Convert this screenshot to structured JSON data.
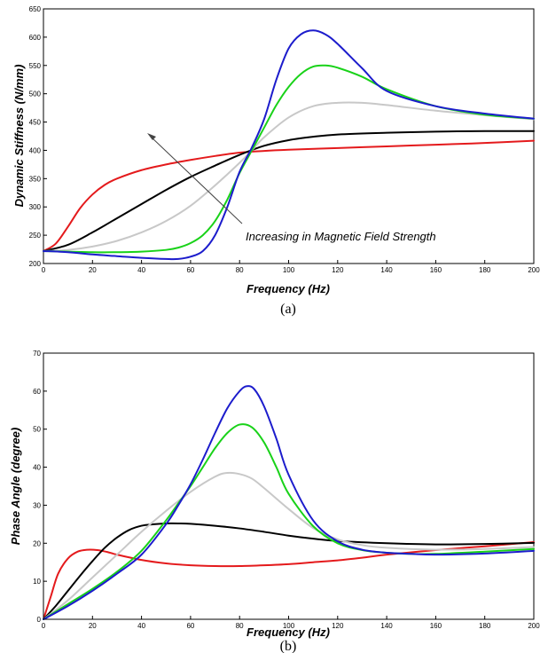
{
  "chart_data": [
    {
      "type": "line",
      "caption": "(a)",
      "xlabel": "Frequency (Hz)",
      "ylabel": "Dynamic Stiffness (N/mm)",
      "xlim": [
        0,
        200
      ],
      "ylim": [
        200,
        650
      ],
      "xticks": [
        0,
        20,
        40,
        60,
        80,
        100,
        120,
        140,
        160,
        180,
        200
      ],
      "yticks": [
        200,
        250,
        300,
        350,
        400,
        450,
        500,
        550,
        600,
        650
      ],
      "grid": false,
      "annotation": "Increasing in Magnetic Field Strength",
      "series": [
        {
          "color": "#e41a1c",
          "x": [
            0,
            5,
            10,
            15,
            20,
            25,
            30,
            40,
            50,
            60,
            70,
            80,
            90,
            100,
            120,
            140,
            160,
            180,
            200
          ],
          "y": [
            222,
            235,
            265,
            298,
            322,
            339,
            350,
            365,
            375,
            383,
            390,
            396,
            399,
            401,
            404,
            407,
            410,
            413,
            417
          ]
        },
        {
          "color": "#000000",
          "x": [
            0,
            10,
            20,
            30,
            40,
            50,
            60,
            70,
            80,
            90,
            100,
            110,
            120,
            140,
            160,
            180,
            200
          ],
          "y": [
            222,
            233,
            255,
            280,
            305,
            330,
            353,
            373,
            392,
            408,
            418,
            424,
            428,
            431,
            433,
            434,
            434
          ]
        },
        {
          "color": "#c8c8c8",
          "x": [
            0,
            10,
            20,
            30,
            40,
            50,
            60,
            70,
            80,
            85,
            90,
            100,
            110,
            120,
            130,
            140,
            160,
            180,
            200
          ],
          "y": [
            222,
            224,
            230,
            240,
            255,
            275,
            302,
            338,
            378,
            400,
            423,
            458,
            478,
            484,
            484,
            480,
            470,
            462,
            455
          ]
        },
        {
          "color": "#19d219",
          "x": [
            0,
            10,
            20,
            30,
            40,
            50,
            55,
            60,
            65,
            70,
            75,
            80,
            85,
            90,
            95,
            100,
            105,
            110,
            115,
            120,
            130,
            140,
            160,
            180,
            200
          ],
          "y": [
            222,
            221,
            220,
            220,
            221,
            224,
            228,
            236,
            250,
            275,
            313,
            360,
            400,
            440,
            480,
            512,
            535,
            548,
            550,
            546,
            530,
            508,
            478,
            463,
            456
          ]
        },
        {
          "color": "#1c1ccc",
          "x": [
            0,
            10,
            20,
            30,
            40,
            50,
            55,
            60,
            65,
            70,
            75,
            80,
            85,
            90,
            95,
            100,
            105,
            110,
            115,
            120,
            130,
            140,
            160,
            180,
            200
          ],
          "y": [
            222,
            220,
            216,
            213,
            210,
            208,
            208,
            212,
            222,
            250,
            300,
            362,
            405,
            455,
            525,
            580,
            605,
            612,
            605,
            588,
            545,
            505,
            478,
            465,
            456
          ]
        }
      ]
    },
    {
      "type": "line",
      "caption": "(b)",
      "xlabel": "Frequency (Hz)",
      "ylabel": "Phase Angle (degree)",
      "xlim": [
        0,
        200
      ],
      "ylim": [
        0,
        70
      ],
      "xticks": [
        0,
        20,
        40,
        60,
        80,
        100,
        120,
        140,
        160,
        180,
        200
      ],
      "yticks": [
        0,
        10,
        20,
        30,
        40,
        50,
        60,
        70
      ],
      "grid": false,
      "series": [
        {
          "color": "#e41a1c",
          "x": [
            0,
            3,
            6,
            10,
            14,
            18,
            22,
            26,
            30,
            40,
            50,
            60,
            70,
            80,
            90,
            100,
            110,
            120,
            130,
            140,
            160,
            180,
            200
          ],
          "y": [
            0,
            6,
            12,
            16,
            17.8,
            18.3,
            18.2,
            17.7,
            17,
            15.6,
            14.7,
            14.2,
            14.0,
            14.0,
            14.2,
            14.5,
            15.0,
            15.5,
            16.2,
            17.0,
            18.2,
            19.2,
            20.3
          ]
        },
        {
          "color": "#000000",
          "x": [
            0,
            5,
            10,
            15,
            20,
            25,
            30,
            35,
            40,
            45,
            50,
            55,
            60,
            70,
            80,
            90,
            100,
            110,
            120,
            140,
            160,
            180,
            200
          ],
          "y": [
            0,
            3.5,
            7.5,
            11.5,
            15.3,
            18.8,
            21.5,
            23.5,
            24.6,
            25.0,
            25.2,
            25.2,
            25.1,
            24.6,
            23.9,
            23.0,
            22.0,
            21.2,
            20.6,
            20.0,
            19.7,
            19.8,
            20.1
          ]
        },
        {
          "color": "#c8c8c8",
          "x": [
            0,
            10,
            20,
            30,
            40,
            50,
            60,
            70,
            75,
            80,
            85,
            90,
            100,
            110,
            120,
            130,
            140,
            160,
            180,
            200
          ],
          "y": [
            0,
            5,
            11,
            17,
            23,
            28.5,
            33.5,
            37.5,
            38.5,
            38.2,
            37,
            34.5,
            29,
            24,
            21,
            19.5,
            18.8,
            18.3,
            18.5,
            19
          ]
        },
        {
          "color": "#19d219",
          "x": [
            0,
            10,
            20,
            30,
            40,
            50,
            55,
            60,
            65,
            70,
            75,
            80,
            85,
            90,
            95,
            100,
            110,
            120,
            130,
            140,
            150,
            160,
            180,
            200
          ],
          "y": [
            0,
            4,
            8,
            12.5,
            18,
            26,
            30.5,
            35,
            40,
            45,
            49,
            51.2,
            50.5,
            46.5,
            40,
            33,
            24.5,
            20,
            18.2,
            17.5,
            17.2,
            17.2,
            17.8,
            18.5
          ]
        },
        {
          "color": "#1c1ccc",
          "x": [
            0,
            10,
            20,
            30,
            40,
            50,
            55,
            60,
            65,
            70,
            75,
            80,
            83,
            86,
            90,
            95,
            100,
            110,
            120,
            130,
            140,
            150,
            160,
            180,
            200
          ],
          "y": [
            0,
            3.5,
            7.5,
            12,
            17,
            25,
            30,
            35.5,
            42,
            49,
            55.5,
            60,
            61.3,
            60.5,
            56,
            47.5,
            38,
            26,
            20.5,
            18.3,
            17.5,
            17.2,
            17.0,
            17.3,
            18.0
          ]
        }
      ]
    }
  ]
}
